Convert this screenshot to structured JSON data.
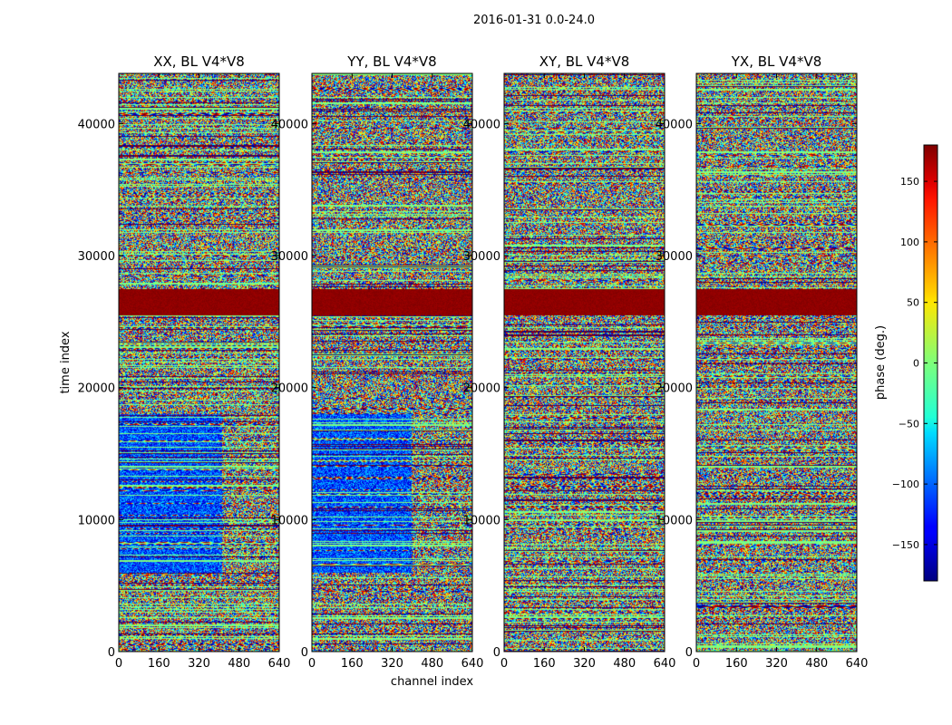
{
  "figure": {
    "suptitle": "2016-01-31 0.0-24.0"
  },
  "colorbar": {
    "label": "phase (deg.)",
    "colormap": "jet",
    "range": [
      -180,
      180
    ],
    "ticks": [
      -150,
      -100,
      -50,
      0,
      50,
      100,
      150
    ],
    "tick_labels": [
      "−150",
      "−100",
      "−50",
      "0",
      "50",
      "100",
      "150"
    ]
  },
  "chart_data": [
    {
      "type": "heatmap",
      "title": "XX, BL V4*V8",
      "xlabel": "",
      "ylabel": "time index",
      "xlim": [
        0,
        640
      ],
      "ylim": [
        0,
        43800
      ],
      "xticks": [
        0,
        160,
        320,
        480,
        640
      ],
      "yticks": [
        0,
        10000,
        20000,
        30000,
        40000
      ],
      "value_label": "phase (deg.)"
    },
    {
      "type": "heatmap",
      "title": "YY, BL V4*V8",
      "xlabel": "channel index",
      "ylabel": "",
      "xlim": [
        0,
        640
      ],
      "ylim": [
        0,
        43800
      ],
      "xticks": [
        0,
        160,
        320,
        480,
        640
      ],
      "yticks": [
        0,
        10000,
        20000,
        30000,
        40000
      ],
      "value_label": "phase (deg.)"
    },
    {
      "type": "heatmap",
      "title": "XY, BL V4*V8",
      "xlabel": "",
      "ylabel": "",
      "xlim": [
        0,
        640
      ],
      "ylim": [
        0,
        43800
      ],
      "xticks": [
        0,
        160,
        320,
        480,
        640
      ],
      "yticks": [
        0,
        10000,
        20000,
        30000,
        40000
      ],
      "value_label": "phase (deg.)"
    },
    {
      "type": "heatmap",
      "title": "YX, BL V4*V8",
      "xlabel": "",
      "ylabel": "",
      "xlim": [
        0,
        640
      ],
      "ylim": [
        0,
        43800
      ],
      "xticks": [
        0,
        160,
        320,
        480,
        640
      ],
      "yticks": [
        0,
        10000,
        20000,
        30000,
        40000
      ],
      "value_label": "phase (deg.)"
    }
  ]
}
